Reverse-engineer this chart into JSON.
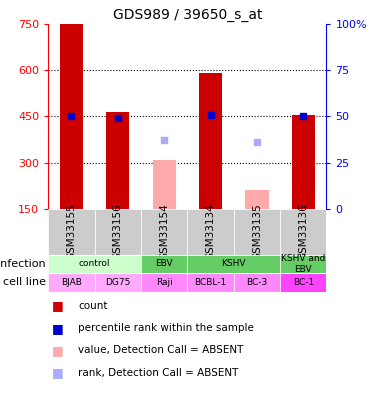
{
  "title": "GDS989 / 39650_s_at",
  "samples": [
    "GSM33155",
    "GSM33156",
    "GSM33154",
    "GSM33134",
    "GSM33135",
    "GSM33136"
  ],
  "count_values": [
    750,
    465,
    null,
    590,
    null,
    455
  ],
  "count_absent_values": [
    null,
    null,
    308,
    null,
    210,
    null
  ],
  "rank_values": [
    50,
    49,
    null,
    51,
    null,
    50
  ],
  "rank_absent_values": [
    null,
    null,
    37,
    null,
    36,
    null
  ],
  "ylim_left": [
    150,
    750
  ],
  "ylim_right": [
    0,
    100
  ],
  "left_ticks": [
    150,
    300,
    450,
    600,
    750
  ],
  "right_ticks": [
    0,
    25,
    50,
    75,
    100
  ],
  "right_tick_labels": [
    "0",
    "25",
    "50",
    "75",
    "100%"
  ],
  "bar_color": "#cc0000",
  "absent_bar_color": "#ffaaaa",
  "rank_color": "#0000cc",
  "rank_absent_color": "#aaaaff",
  "sample_bg_color": "#cccccc",
  "dotted_values": [
    300,
    450,
    600
  ],
  "n_samples": 6,
  "infection_spans": [
    {
      "label": "control",
      "start": 0,
      "end": 1,
      "color": "#ccffcc"
    },
    {
      "label": "EBV",
      "start": 2,
      "end": 2,
      "color": "#66cc66"
    },
    {
      "label": "KSHV",
      "start": 3,
      "end": 4,
      "color": "#66cc66"
    },
    {
      "label": "KSHV and\nEBV",
      "start": 5,
      "end": 5,
      "color": "#66cc66"
    }
  ],
  "cell_spans": [
    {
      "label": "BJAB",
      "start": 0,
      "end": 0,
      "color": "#ffaaff"
    },
    {
      "label": "DG75",
      "start": 1,
      "end": 1,
      "color": "#ffaaff"
    },
    {
      "label": "Raji",
      "start": 2,
      "end": 2,
      "color": "#ff88ff"
    },
    {
      "label": "BCBL-1",
      "start": 3,
      "end": 3,
      "color": "#ff88ff"
    },
    {
      "label": "BC-3",
      "start": 4,
      "end": 4,
      "color": "#ff88ff"
    },
    {
      "label": "BC-1",
      "start": 5,
      "end": 5,
      "color": "#ff44ff"
    }
  ],
  "legend_items": [
    {
      "color": "#cc0000",
      "label": "count"
    },
    {
      "color": "#0000cc",
      "label": "percentile rank within the sample"
    },
    {
      "color": "#ffaaaa",
      "label": "value, Detection Call = ABSENT"
    },
    {
      "color": "#aaaaff",
      "label": "rank, Detection Call = ABSENT"
    }
  ]
}
